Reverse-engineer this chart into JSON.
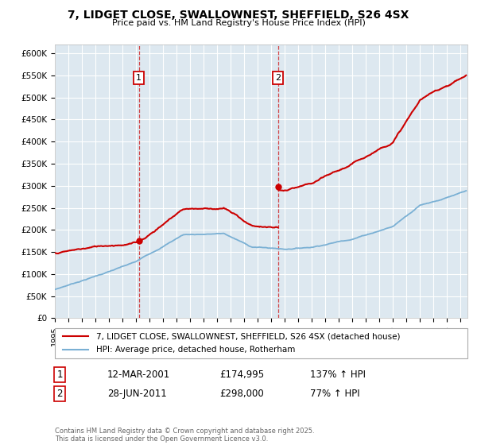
{
  "title": "7, LIDGET CLOSE, SWALLOWNEST, SHEFFIELD, S26 4SX",
  "subtitle": "Price paid vs. HM Land Registry's House Price Index (HPI)",
  "ylabel_ticks": [
    "£0",
    "£50K",
    "£100K",
    "£150K",
    "£200K",
    "£250K",
    "£300K",
    "£350K",
    "£400K",
    "£450K",
    "£500K",
    "£550K",
    "£600K"
  ],
  "ylim": [
    0,
    620000
  ],
  "xlim_start": 1995.0,
  "xlim_end": 2025.5,
  "legend_line1": "7, LIDGET CLOSE, SWALLOWNEST, SHEFFIELD, S26 4SX (detached house)",
  "legend_line2": "HPI: Average price, detached house, Rotherham",
  "sale1_date": "12-MAR-2001",
  "sale1_price": "£174,995",
  "sale1_hpi": "137% ↑ HPI",
  "sale2_date": "28-JUN-2011",
  "sale2_price": "£298,000",
  "sale2_hpi": "77% ↑ HPI",
  "footnote": "Contains HM Land Registry data © Crown copyright and database right 2025.\nThis data is licensed under the Open Government Licence v3.0.",
  "sale1_year": 2001.2,
  "sale2_year": 2011.5,
  "sale1_price_val": 174995,
  "sale2_price_val": 298000,
  "red_color": "#cc0000",
  "blue_color": "#7ab0d4",
  "bg_color": "#dde8f0",
  "grid_color": "#ffffff",
  "fig_bg": "#ffffff"
}
